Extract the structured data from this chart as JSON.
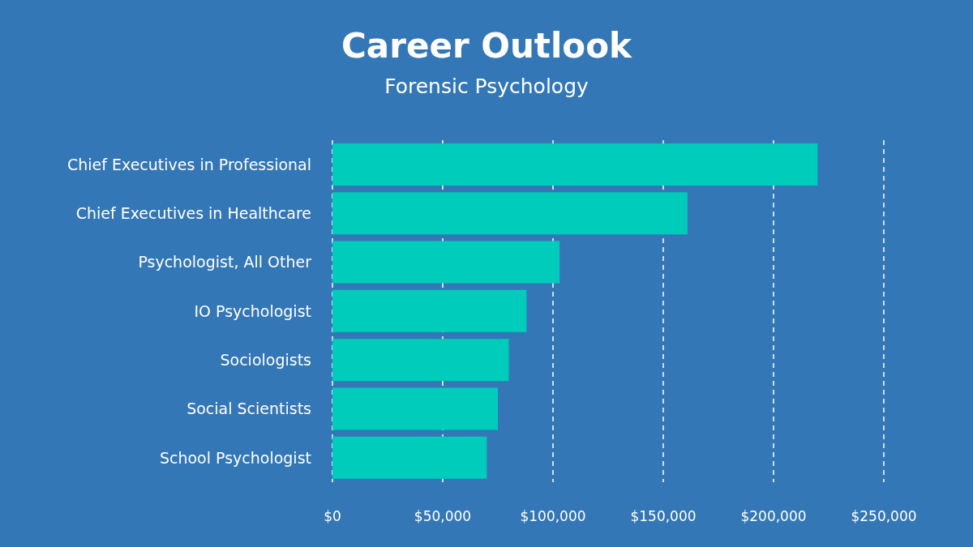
{
  "chart_data": {
    "type": "bar",
    "orientation": "horizontal",
    "title": "Career Outlook",
    "subtitle": "Forensic Psychology",
    "categories": [
      "Chief Executives in Professional",
      "Chief Executives in Healthcare",
      "Psychologist, All Other",
      "IO Psychologist",
      "Sociologists",
      "Social Scientists",
      "School Psychologist"
    ],
    "values": [
      220000,
      161000,
      103000,
      88000,
      80000,
      75000,
      70000
    ],
    "color": "#00ccbb",
    "xlim": [
      0,
      250000
    ],
    "xticks": [
      {
        "value": 0,
        "label": "$0"
      },
      {
        "value": 50000,
        "label": "$50,000"
      },
      {
        "value": 100000,
        "label": "$100,000"
      },
      {
        "value": 150000,
        "label": "$150,000"
      },
      {
        "value": 200000,
        "label": "$200,000"
      },
      {
        "value": 250000,
        "label": "$250,000"
      }
    ],
    "grid": "x",
    "legend": false
  }
}
